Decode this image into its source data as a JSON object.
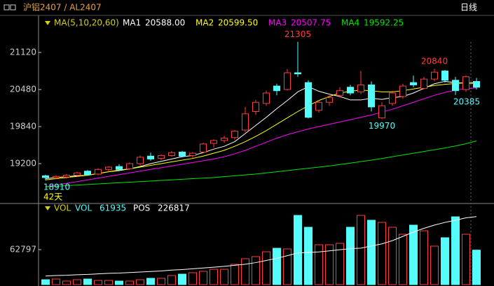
{
  "chart_data": [
    {
      "type": "candlestick",
      "title": "沪铝2407 / AL2407",
      "period": "日线",
      "span_label": "42天",
      "indicator_label": "MA(5,10,20,60)",
      "up_color": "#ff3c3c",
      "down_color": "#54fcfc",
      "open": [
        18990,
        18960,
        18970,
        19000,
        19070,
        19020,
        19100,
        19150,
        19110,
        19200,
        19330,
        19290,
        19340,
        19400,
        19340,
        19400,
        19550,
        19600,
        19650,
        19780,
        20100,
        20240,
        20540,
        20480,
        20770,
        20600,
        20120,
        20260,
        20380,
        20520,
        20440,
        20560,
        19990,
        20240,
        20360,
        20600,
        20500,
        20660,
        20800,
        20640,
        20480,
        20620
      ],
      "high": [
        19010,
        19000,
        19020,
        19060,
        19090,
        19120,
        19160,
        19190,
        19220,
        19340,
        19390,
        19360,
        19420,
        19420,
        19400,
        19560,
        19620,
        19680,
        19780,
        20180,
        20300,
        20460,
        20580,
        20830,
        21305,
        20640,
        20300,
        20380,
        20520,
        20560,
        20800,
        20620,
        20260,
        20460,
        20580,
        20720,
        20700,
        20840,
        20820,
        20700,
        20720,
        20680
      ],
      "low": [
        18910,
        18930,
        18940,
        18980,
        18990,
        19000,
        19060,
        19080,
        19090,
        19170,
        19250,
        19260,
        19320,
        19310,
        19300,
        19380,
        19480,
        19560,
        19620,
        19740,
        20040,
        20200,
        20380,
        20460,
        20700,
        19980,
        20080,
        20200,
        20340,
        20380,
        20400,
        20100,
        19970,
        20200,
        20320,
        20520,
        20480,
        20620,
        20600,
        20385,
        20440,
        20480
      ],
      "close": [
        18960,
        18980,
        19000,
        19040,
        19010,
        19100,
        19140,
        19100,
        19200,
        19310,
        19280,
        19340,
        19390,
        19330,
        19380,
        19540,
        19600,
        19640,
        19760,
        20060,
        20260,
        20420,
        20460,
        20770,
        20750,
        20000,
        20260,
        20340,
        20460,
        20420,
        20560,
        20180,
        20200,
        20420,
        20540,
        20560,
        20660,
        20780,
        20640,
        20460,
        20700,
        20520
      ],
      "ylim": [
        18524,
        21688
      ],
      "yticks": [
        19200,
        19840,
        20480,
        21120
      ],
      "series": [
        {
          "name": "MA1",
          "color": "#ffffff",
          "value_label": "20588.00",
          "values": [
            18940,
            18960,
            18975,
            18990,
            19000,
            19030,
            19060,
            19080,
            19110,
            19150,
            19200,
            19240,
            19280,
            19320,
            19340,
            19390,
            19450,
            19500,
            19580,
            19720,
            19860,
            20000,
            20150,
            20290,
            20440,
            20530,
            20450,
            20400,
            20360,
            20300,
            20300,
            20330,
            20310,
            20340,
            20360,
            20420,
            20500,
            20580,
            20620,
            20600,
            20590,
            20588
          ]
        },
        {
          "name": "MA2",
          "color": "#ffff00",
          "value_label": "20599.50",
          "values": [
            18920,
            18940,
            18960,
            18980,
            19000,
            19030,
            19060,
            19090,
            19110,
            19140,
            19170,
            19200,
            19230,
            19260,
            19290,
            19330,
            19380,
            19430,
            19500,
            19580,
            19670,
            19770,
            19880,
            19990,
            20100,
            20200,
            20290,
            20360,
            20420,
            20450,
            20470,
            20460,
            20440,
            20440,
            20460,
            20490,
            20520,
            20550,
            20570,
            20585,
            20595,
            20599.5
          ]
        },
        {
          "name": "MA3",
          "color": "#ff00ff",
          "value_label": "20507.75",
          "values": [
            18800,
            18830,
            18860,
            18890,
            18920,
            18950,
            18980,
            19010,
            19040,
            19070,
            19100,
            19130,
            19160,
            19190,
            19220,
            19250,
            19280,
            19320,
            19370,
            19430,
            19500,
            19570,
            19640,
            19700,
            19750,
            19800,
            19840,
            19880,
            19920,
            19960,
            20000,
            20040,
            20090,
            20140,
            20200,
            20260,
            20320,
            20380,
            20430,
            20470,
            20495,
            20507.75
          ]
        },
        {
          "name": "MA4",
          "color": "#00e600",
          "value_label": "19592.25",
          "values": [
            18800,
            18810,
            18820,
            18830,
            18840,
            18850,
            18860,
            18870,
            18880,
            18890,
            18900,
            18910,
            18920,
            18930,
            18940,
            18950,
            18960,
            18975,
            18990,
            19005,
            19020,
            19040,
            19060,
            19080,
            19100,
            19120,
            19140,
            19160,
            19185,
            19210,
            19235,
            19260,
            19290,
            19320,
            19350,
            19380,
            19410,
            19440,
            19470,
            19505,
            19545,
            19592.25
          ]
        }
      ]
    },
    {
      "type": "bar",
      "indicator_label": "VOL",
      "ylim": [
        0,
        144440
      ],
      "yticks": [
        62797
      ],
      "y2lim": [
        100000,
        250000
      ],
      "series": [
        {
          "name": "VOL",
          "values": [
            8800,
            10000,
            6300,
            8800,
            10000,
            7500,
            7500,
            6300,
            6300,
            8800,
            11300,
            11300,
            16300,
            18800,
            21400,
            23900,
            27600,
            27600,
            36400,
            46500,
            50200,
            59000,
            65300,
            64100,
            124300,
            103000,
            71600,
            71600,
            74100,
            103000,
            124300,
            115600,
            111800,
            103000,
            90400,
            106800,
            96700,
            69100,
            84200,
            121800,
            90400,
            61935
          ]
        },
        {
          "name": "POS",
          "color": "#ffffff",
          "axis": "y2",
          "values": [
            116000,
            117000,
            117500,
            118500,
            119000,
            120000,
            121000,
            121500,
            122500,
            123500,
            124500,
            125500,
            127000,
            128000,
            129500,
            131000,
            132500,
            134000,
            136000,
            138000,
            141000,
            145000,
            149000,
            154000,
            159000,
            160000,
            161000,
            163000,
            165000,
            167000,
            168000,
            172000,
            176000,
            182000,
            190000,
            198000,
            205000,
            211000,
            216000,
            220000,
            224500,
            226817
          ]
        }
      ]
    }
  ]
}
